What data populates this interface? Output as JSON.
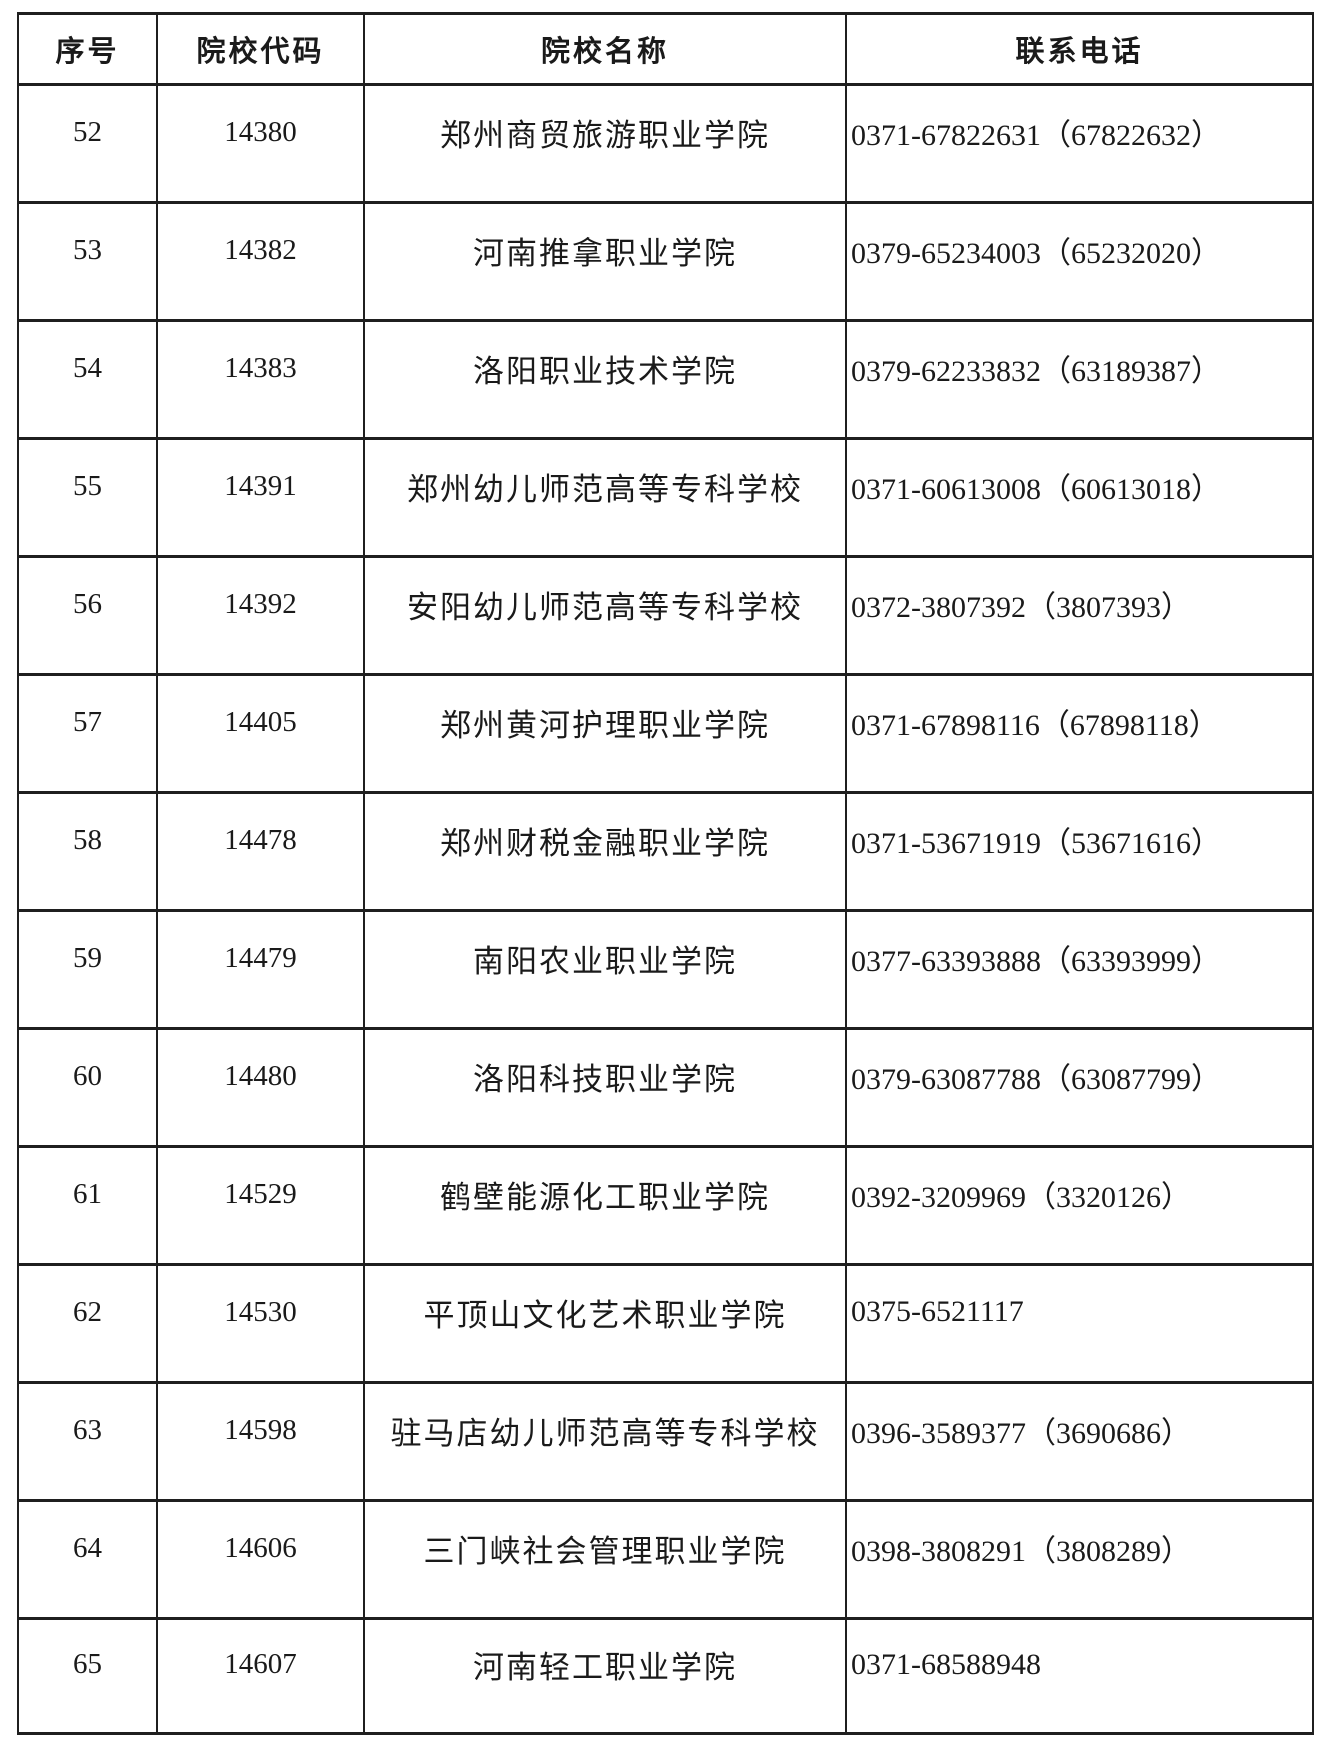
{
  "page": {
    "background_color": "#ffffff",
    "text_color": "#1a1a1a",
    "border_color": "#1f1f1f"
  },
  "table": {
    "columns": [
      "序号",
      "院校代码",
      "院校名称",
      "联系电话"
    ],
    "rows": [
      {
        "seq": "52",
        "code": "14380",
        "name": "郑州商贸旅游职业学院",
        "phone": "0371-67822631（67822632）"
      },
      {
        "seq": "53",
        "code": "14382",
        "name": "河南推拿职业学院",
        "phone": "0379-65234003（65232020）"
      },
      {
        "seq": "54",
        "code": "14383",
        "name": "洛阳职业技术学院",
        "phone": "0379-62233832（63189387）"
      },
      {
        "seq": "55",
        "code": "14391",
        "name": "郑州幼儿师范高等专科学校",
        "phone": "0371-60613008（60613018）"
      },
      {
        "seq": "56",
        "code": "14392",
        "name": "安阳幼儿师范高等专科学校",
        "phone": "0372-3807392（3807393）"
      },
      {
        "seq": "57",
        "code": "14405",
        "name": "郑州黄河护理职业学院",
        "phone": "0371-67898116（67898118）"
      },
      {
        "seq": "58",
        "code": "14478",
        "name": "郑州财税金融职业学院",
        "phone": "0371-53671919（53671616）"
      },
      {
        "seq": "59",
        "code": "14479",
        "name": "南阳农业职业学院",
        "phone": "0377-63393888（63393999）"
      },
      {
        "seq": "60",
        "code": "14480",
        "name": "洛阳科技职业学院",
        "phone": "0379-63087788（63087799）"
      },
      {
        "seq": "61",
        "code": "14529",
        "name": "鹤壁能源化工职业学院",
        "phone": "0392-3209969（3320126）"
      },
      {
        "seq": "62",
        "code": "14530",
        "name": "平顶山文化艺术职业学院",
        "phone": "0375-6521117"
      },
      {
        "seq": "63",
        "code": "14598",
        "name": "驻马店幼儿师范高等专科学校",
        "phone": "0396-3589377（3690686）"
      },
      {
        "seq": "64",
        "code": "14606",
        "name": "三门峡社会管理职业学院",
        "phone": "0398-3808291（3808289）"
      },
      {
        "seq": "65",
        "code": "14607",
        "name": "河南轻工职业学院",
        "phone": "0371-68588948"
      }
    ]
  }
}
